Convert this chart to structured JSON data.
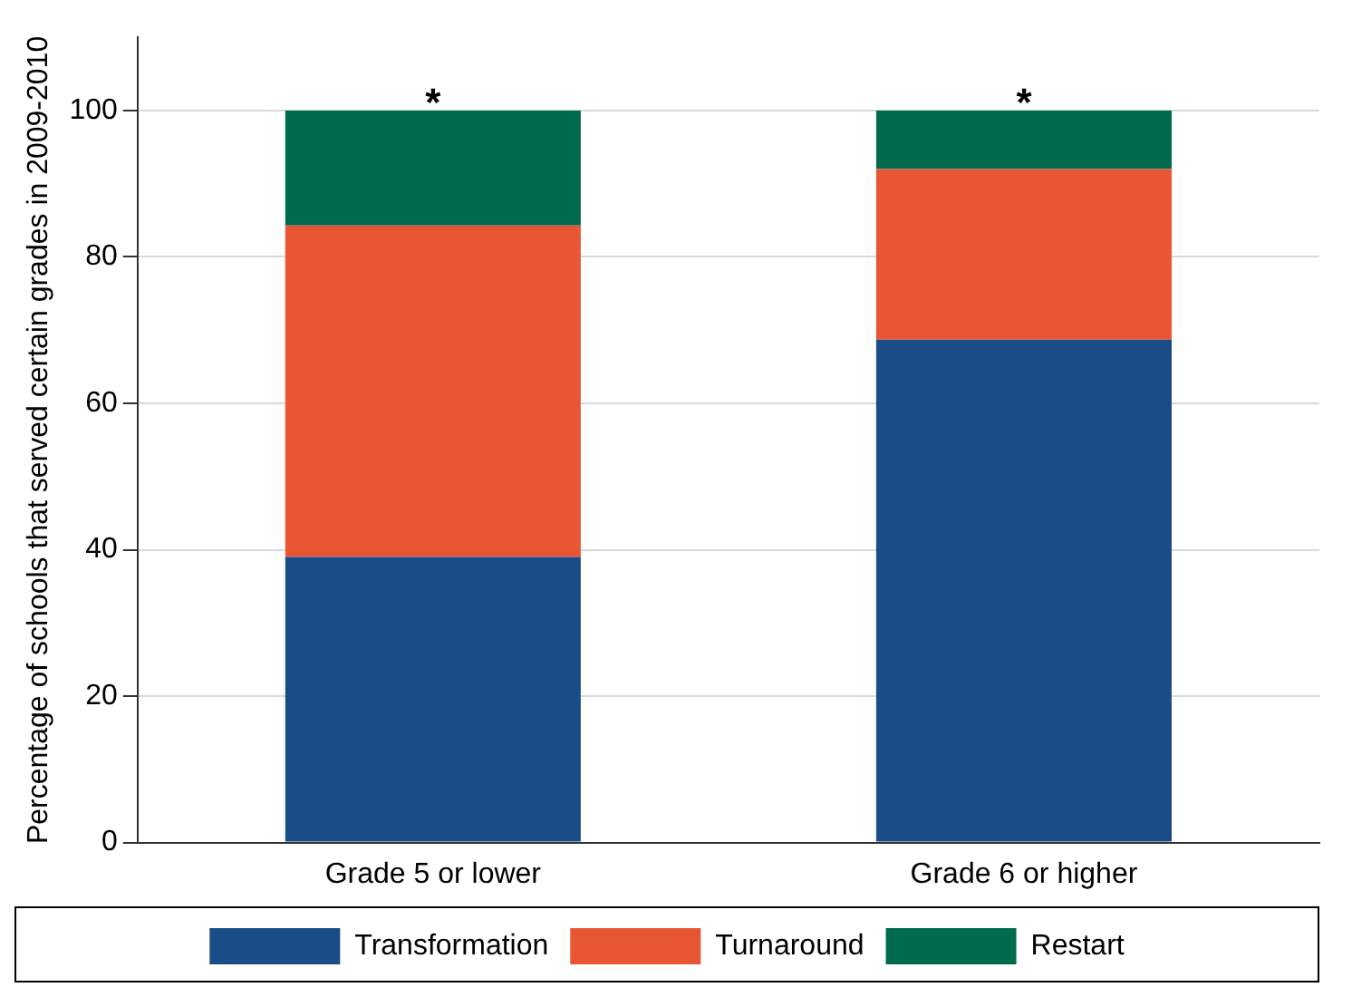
{
  "chart_data": {
    "type": "bar",
    "stacked": true,
    "ylabel": "Percentage of schools that served certain grades in 2009-2010",
    "categories": [
      "Grade 5 or lower",
      "Grade 6 or higher"
    ],
    "series": [
      {
        "name": "Transformation",
        "color": "#1a4d88",
        "values": [
          39,
          68.7
        ]
      },
      {
        "name": "Turnaround",
        "color": "#e95634",
        "values": [
          45.3,
          23.3
        ]
      },
      {
        "name": "Restart",
        "color": "#006a4e",
        "values": [
          15.7,
          8
        ]
      }
    ],
    "ylim": [
      0,
      110
    ],
    "yticks": [
      0,
      20,
      40,
      60,
      80,
      100
    ],
    "grid": "y",
    "legend": "bottom",
    "annotations": [
      {
        "text": "*",
        "x": "Grade 5 or lower",
        "y": 100
      },
      {
        "text": "*",
        "x": "Grade 6 or higher",
        "y": 100
      }
    ]
  }
}
